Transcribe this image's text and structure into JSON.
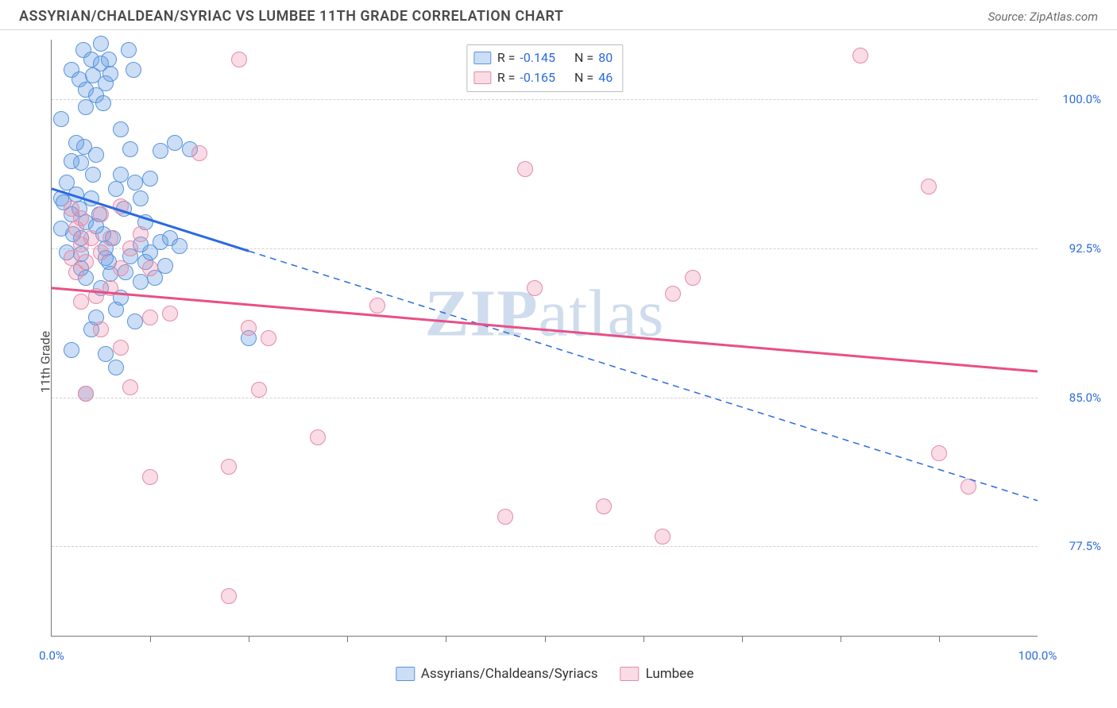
{
  "header": {
    "title": "ASSYRIAN/CHALDEAN/SYRIAC VS LUMBEE 11TH GRADE CORRELATION CHART",
    "source": "Source: ZipAtlas.com"
  },
  "ylabel": "11th Grade",
  "watermark_bold": "ZIP",
  "watermark_light": "atlas",
  "chart": {
    "xlim": [
      0,
      100
    ],
    "ylim": [
      73,
      103
    ],
    "xtick_label_left": "0.0%",
    "xtick_label_right": "100.0%",
    "xticks_minor": [
      10,
      20,
      30,
      40,
      50,
      60,
      70,
      80,
      90
    ],
    "yticks": [
      {
        "v": 100.0,
        "label": "100.0%"
      },
      {
        "v": 92.5,
        "label": "92.5%"
      },
      {
        "v": 85.0,
        "label": "85.0%"
      },
      {
        "v": 77.5,
        "label": "77.5%"
      }
    ],
    "background_color": "#ffffff",
    "grid_color": "#d0d0d0",
    "axis_color": "#777777",
    "tick_label_color": "#2b6adf"
  },
  "series": [
    {
      "key": "assyrian",
      "label": "Assyrians/Chaldeans/Syriacs",
      "color_fill": "rgba(107,160,230,0.35)",
      "color_stroke": "#5a94db",
      "line_color": "#2b6adf",
      "R": "-0.145",
      "N": "80",
      "trend": {
        "x1": 0,
        "y1": 95.5,
        "x2": 20,
        "y2": 92.2,
        "solid_end_x": 20,
        "dash_to_x": 100,
        "dash_to_y": 79.8
      },
      "marker_radius": 10,
      "points": [
        [
          1,
          95
        ],
        [
          1,
          99
        ],
        [
          2,
          101.5
        ],
        [
          2.8,
          101
        ],
        [
          3.2,
          102.5
        ],
        [
          3.5,
          100.5
        ],
        [
          3.5,
          99.6
        ],
        [
          4,
          102
        ],
        [
          4.2,
          101.2
        ],
        [
          4.5,
          100.2
        ],
        [
          5,
          102.8
        ],
        [
          5,
          101.8
        ],
        [
          5.2,
          99.8
        ],
        [
          5.5,
          100.8
        ],
        [
          5.8,
          102
        ],
        [
          6,
          101.3
        ],
        [
          1,
          93.5
        ],
        [
          1.2,
          94.8
        ],
        [
          1.5,
          95.8
        ],
        [
          2,
          94.2
        ],
        [
          2.2,
          93.2
        ],
        [
          2.5,
          95.2
        ],
        [
          2.8,
          94.5
        ],
        [
          3,
          96.8
        ],
        [
          3.3,
          97.6
        ],
        [
          3.5,
          93.8
        ],
        [
          4,
          95
        ],
        [
          4.2,
          96.2
        ],
        [
          4.5,
          97.2
        ],
        [
          4.8,
          94.2
        ],
        [
          5.2,
          93.2
        ],
        [
          5.5,
          92.5
        ],
        [
          5.8,
          91.8
        ],
        [
          6.2,
          93
        ],
        [
          6.5,
          95.5
        ],
        [
          7,
          98.5
        ],
        [
          7,
          96.2
        ],
        [
          7.3,
          94.5
        ],
        [
          8,
          97.5
        ],
        [
          8.5,
          95.8
        ],
        [
          9,
          95
        ],
        [
          9,
          92.7
        ],
        [
          9.5,
          93.8
        ],
        [
          3,
          92.2
        ],
        [
          3,
          91.5
        ],
        [
          3.5,
          91
        ],
        [
          4,
          88.4
        ],
        [
          4.5,
          89
        ],
        [
          5,
          90.5
        ],
        [
          5.5,
          92
        ],
        [
          6,
          91.2
        ],
        [
          6.5,
          89.4
        ],
        [
          7,
          90
        ],
        [
          7.5,
          91.3
        ],
        [
          8,
          92.1
        ],
        [
          8.5,
          88.8
        ],
        [
          9,
          90.8
        ],
        [
          9.5,
          91.8
        ],
        [
          10,
          92.3
        ],
        [
          10.5,
          91
        ],
        [
          11,
          92.8
        ],
        [
          11,
          97.4
        ],
        [
          11.5,
          91.6
        ],
        [
          12,
          93
        ],
        [
          13,
          92.6
        ],
        [
          12.5,
          97.8
        ],
        [
          14,
          97.5
        ],
        [
          10,
          96
        ],
        [
          2,
          96.9
        ],
        [
          2.5,
          97.8
        ],
        [
          3,
          93
        ],
        [
          4.5,
          93.6
        ],
        [
          2,
          87.4
        ],
        [
          3.5,
          85.2
        ],
        [
          5.5,
          87.2
        ],
        [
          6.5,
          86.5
        ],
        [
          20,
          88
        ],
        [
          7.8,
          102.5
        ],
        [
          8.3,
          101.5
        ],
        [
          1.5,
          92.3
        ]
      ]
    },
    {
      "key": "lumbee",
      "label": "Lumbee",
      "color_fill": "rgba(235,140,170,0.30)",
      "color_stroke": "#e48ba8",
      "line_color": "#e84f86",
      "R": "-0.165",
      "N": "46",
      "trend": {
        "x1": 0,
        "y1": 90.5,
        "x2": 100,
        "y2": 86.3,
        "solid_end_x": 100,
        "dash_to_x": 100,
        "dash_to_y": 86.3
      },
      "marker_radius": 10,
      "points": [
        [
          2,
          94.5
        ],
        [
          2.5,
          93.5
        ],
        [
          3,
          94
        ],
        [
          3,
          92.7
        ],
        [
          3.5,
          91.8
        ],
        [
          4,
          93
        ],
        [
          5,
          94.2
        ],
        [
          5,
          92.3
        ],
        [
          6,
          93
        ],
        [
          7,
          91.5
        ],
        [
          8,
          92.5
        ],
        [
          9,
          93.2
        ],
        [
          10,
          91.5
        ],
        [
          3,
          89.8
        ],
        [
          5,
          88.4
        ],
        [
          6,
          90.5
        ],
        [
          7,
          87.5
        ],
        [
          8,
          85.5
        ],
        [
          3.5,
          85.2
        ],
        [
          10,
          89
        ],
        [
          12,
          89.2
        ],
        [
          10,
          81
        ],
        [
          18,
          81.5
        ],
        [
          15,
          97.3
        ],
        [
          19,
          102
        ],
        [
          20,
          88.5
        ],
        [
          22,
          88
        ],
        [
          27,
          83
        ],
        [
          18,
          75
        ],
        [
          21,
          85.4
        ],
        [
          33,
          89.6
        ],
        [
          48,
          96.5
        ],
        [
          49,
          90.5
        ],
        [
          46,
          79
        ],
        [
          56,
          79.5
        ],
        [
          62,
          78
        ],
        [
          65,
          91
        ],
        [
          63,
          90.2
        ],
        [
          82,
          102.2
        ],
        [
          89,
          95.6
        ],
        [
          90,
          82.2
        ],
        [
          93,
          80.5
        ],
        [
          2,
          92
        ],
        [
          2.5,
          91.3
        ],
        [
          4.5,
          90.1
        ],
        [
          7,
          94.6
        ]
      ]
    }
  ],
  "legend_top": [
    {
      "swatch_series": "assyrian",
      "R_label": "R =",
      "R_val": "-0.145",
      "N_label": "N =",
      "N_val": "80"
    },
    {
      "swatch_series": "lumbee",
      "R_label": "R =",
      "R_val": "-0.165",
      "N_label": "N =",
      "N_val": "46"
    }
  ],
  "legend_bottom": [
    {
      "series": "assyrian",
      "label": "Assyrians/Chaldeans/Syriacs"
    },
    {
      "series": "lumbee",
      "label": "Lumbee"
    }
  ]
}
